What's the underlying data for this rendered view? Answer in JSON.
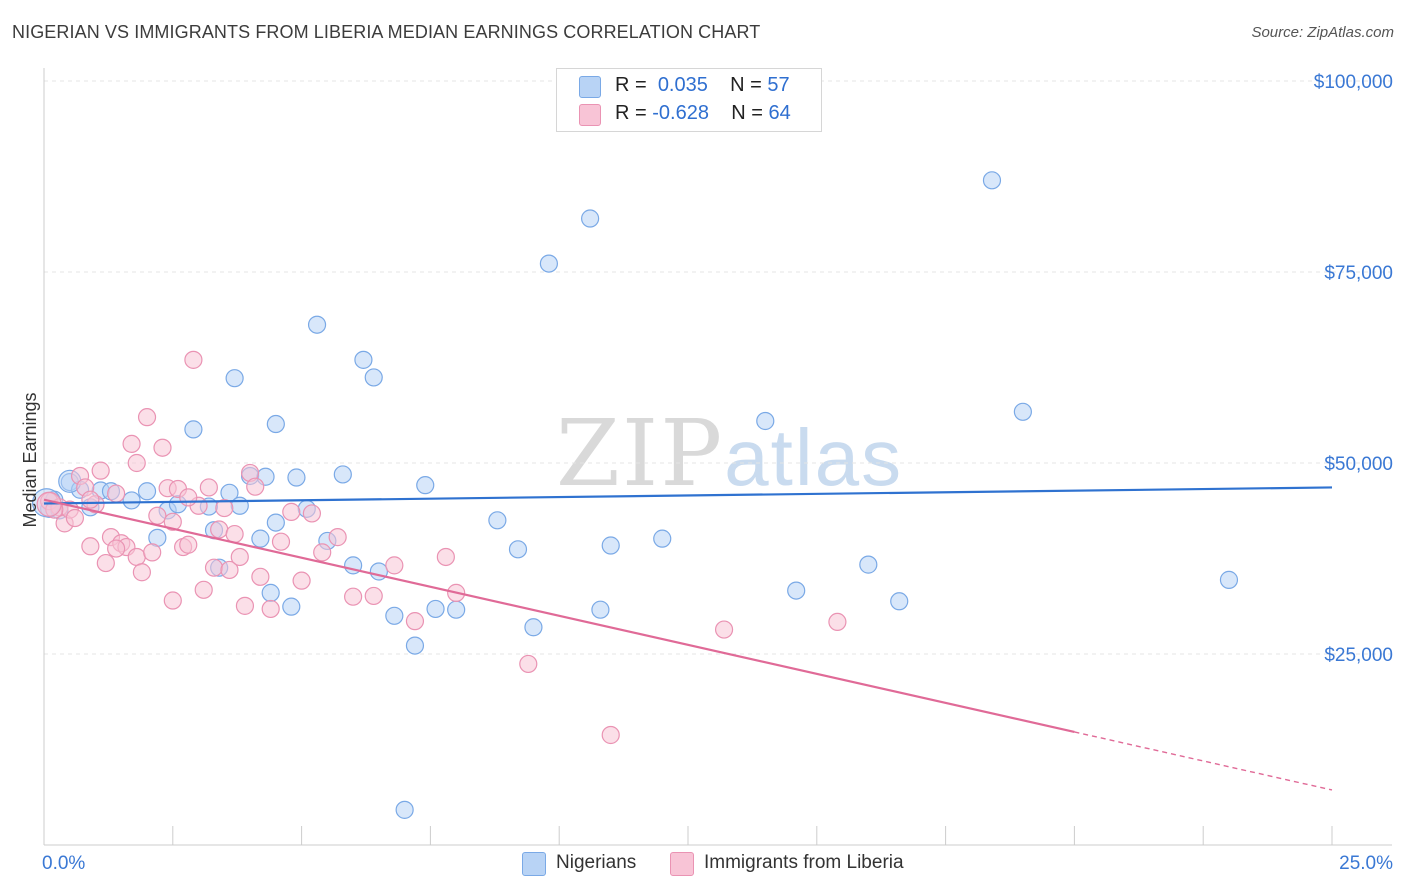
{
  "header": {
    "title": "NIGERIAN VS IMMIGRANTS FROM LIBERIA MEDIAN EARNINGS CORRELATION CHART",
    "source": "Source: ZipAtlas.com"
  },
  "legend": {
    "r_label": "R =",
    "n_label": "N =",
    "series1": {
      "r": "0.035",
      "n": "57"
    },
    "series2": {
      "r": "-0.628",
      "n": "64"
    }
  },
  "watermark": {
    "zip": "ZIP",
    "atlas": "atlas"
  },
  "colors": {
    "blue_fill": "#b8d3f5",
    "blue_stroke": "#7aa9e6",
    "blue_line": "#2f72d0",
    "pink_fill": "#f8c4d6",
    "pink_stroke": "#ea93b3",
    "pink_line": "#e06a97",
    "axis_label": "#3a78d4",
    "grid": "#e4e4e4"
  },
  "chart_data": {
    "type": "scatter",
    "title": "NIGERIAN VS IMMIGRANTS FROM LIBERIA MEDIAN EARNINGS CORRELATION CHART",
    "xlabel": "",
    "ylabel": "Median Earnings",
    "xlim": [
      0,
      25
    ],
    "ylim": [
      0,
      105000
    ],
    "x_tick_labels": [
      "0.0%",
      "25.0%"
    ],
    "y_ticks": [
      25000,
      50000,
      75000,
      100000
    ],
    "y_tick_labels": [
      "$25,000",
      "$50,000",
      "$75,000",
      "$100,000"
    ],
    "grid": true,
    "legend_position": "top-center",
    "series": [
      {
        "name": "Nigerians",
        "r": 0.035,
        "n": 57,
        "trend": {
          "x": [
            0,
            25
          ],
          "y": [
            44700,
            46800
          ]
        },
        "points": [
          [
            0.1,
            44000
          ],
          [
            0.2,
            45200
          ],
          [
            0.3,
            43800
          ],
          [
            0.5,
            47500
          ],
          [
            0.7,
            46500
          ],
          [
            0.9,
            44200
          ],
          [
            1.1,
            46400
          ],
          [
            1.3,
            46300
          ],
          [
            1.7,
            45100
          ],
          [
            2.0,
            46300
          ],
          [
            2.2,
            40200
          ],
          [
            2.4,
            43800
          ],
          [
            2.6,
            44600
          ],
          [
            2.9,
            54400
          ],
          [
            3.2,
            44300
          ],
          [
            3.3,
            41200
          ],
          [
            3.4,
            36300
          ],
          [
            3.6,
            46100
          ],
          [
            3.8,
            44400
          ],
          [
            3.7,
            61100
          ],
          [
            4.0,
            48300
          ],
          [
            4.2,
            40100
          ],
          [
            4.3,
            48200
          ],
          [
            4.4,
            33000
          ],
          [
            4.5,
            55100
          ],
          [
            4.5,
            42200
          ],
          [
            4.8,
            31200
          ],
          [
            4.9,
            48100
          ],
          [
            5.1,
            44000
          ],
          [
            5.3,
            68100
          ],
          [
            5.5,
            39800
          ],
          [
            5.8,
            48500
          ],
          [
            6.0,
            36600
          ],
          [
            6.2,
            63500
          ],
          [
            6.4,
            61200
          ],
          [
            6.5,
            35800
          ],
          [
            6.8,
            30000
          ],
          [
            7.0,
            4600
          ],
          [
            7.2,
            26100
          ],
          [
            7.4,
            47100
          ],
          [
            7.6,
            30900
          ],
          [
            8.0,
            30800
          ],
          [
            8.8,
            42500
          ],
          [
            9.2,
            38700
          ],
          [
            9.5,
            28500
          ],
          [
            9.8,
            76100
          ],
          [
            10.6,
            82000
          ],
          [
            10.8,
            30800
          ],
          [
            11.0,
            39200
          ],
          [
            12.0,
            40100
          ],
          [
            14.0,
            55500
          ],
          [
            14.6,
            33300
          ],
          [
            16.0,
            36700
          ],
          [
            16.6,
            31900
          ],
          [
            18.4,
            87000
          ],
          [
            19.0,
            56700
          ],
          [
            23.0,
            34700
          ]
        ]
      },
      {
        "name": "Immigrants from Liberia",
        "r": -0.628,
        "n": 64,
        "trend": {
          "x": [
            0,
            20
          ],
          "y": [
            45200,
            14800
          ],
          "dashed_to": {
            "x": 25,
            "y": 7200
          }
        },
        "points": [
          [
            0.1,
            45000
          ],
          [
            0.3,
            44200
          ],
          [
            0.4,
            42100
          ],
          [
            0.5,
            43900
          ],
          [
            0.6,
            42800
          ],
          [
            0.7,
            48300
          ],
          [
            0.8,
            46800
          ],
          [
            0.9,
            39100
          ],
          [
            1.0,
            44600
          ],
          [
            1.1,
            49000
          ],
          [
            1.2,
            36900
          ],
          [
            1.3,
            40300
          ],
          [
            1.4,
            46000
          ],
          [
            1.5,
            39500
          ],
          [
            1.6,
            39000
          ],
          [
            1.7,
            52500
          ],
          [
            1.8,
            37700
          ],
          [
            1.8,
            50000
          ],
          [
            1.9,
            35700
          ],
          [
            2.0,
            56000
          ],
          [
            2.1,
            38300
          ],
          [
            2.2,
            43100
          ],
          [
            2.3,
            52000
          ],
          [
            2.4,
            46700
          ],
          [
            2.5,
            32000
          ],
          [
            2.6,
            46600
          ],
          [
            2.7,
            39000
          ],
          [
            2.8,
            39300
          ],
          [
            2.9,
            63500
          ],
          [
            3.0,
            44400
          ],
          [
            3.1,
            33400
          ],
          [
            3.2,
            46800
          ],
          [
            3.3,
            36300
          ],
          [
            3.4,
            41300
          ],
          [
            3.5,
            44100
          ],
          [
            3.6,
            36000
          ],
          [
            3.8,
            37700
          ],
          [
            3.9,
            31300
          ],
          [
            4.0,
            48700
          ],
          [
            4.1,
            46900
          ],
          [
            4.4,
            30900
          ],
          [
            4.6,
            39700
          ],
          [
            4.8,
            43600
          ],
          [
            5.0,
            34600
          ],
          [
            5.2,
            43400
          ],
          [
            5.4,
            38300
          ],
          [
            5.7,
            40300
          ],
          [
            6.0,
            32500
          ],
          [
            6.4,
            32600
          ],
          [
            6.8,
            36600
          ],
          [
            7.2,
            29300
          ],
          [
            7.8,
            37700
          ],
          [
            8.0,
            33000
          ],
          [
            9.4,
            23700
          ],
          [
            11.0,
            14400
          ],
          [
            13.2,
            28200
          ],
          [
            15.4,
            29200
          ],
          [
            0.9,
            45200
          ],
          [
            2.5,
            42300
          ],
          [
            3.7,
            40700
          ],
          [
            1.4,
            38800
          ],
          [
            0.2,
            43900
          ],
          [
            2.8,
            45500
          ],
          [
            4.2,
            35100
          ]
        ]
      }
    ]
  },
  "bottom_legend": {
    "series1": "Nigerians",
    "series2": "Immigrants from Liberia"
  }
}
